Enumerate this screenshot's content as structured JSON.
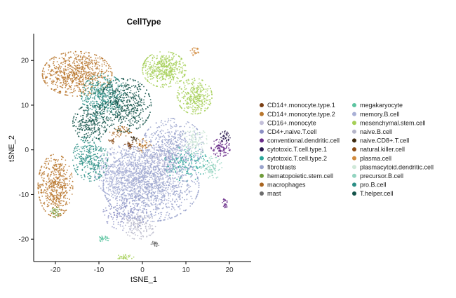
{
  "chart_data": {
    "type": "scatter",
    "title": "CellType",
    "xlabel": "tSNE_1",
    "ylabel": "tSNE_2",
    "xlim": [
      -25,
      25
    ],
    "ylim": [
      -25,
      26
    ],
    "x_ticks": [
      -20,
      -10,
      0,
      10,
      20
    ],
    "y_ticks": [
      -20,
      -10,
      0,
      10,
      20
    ],
    "grid": false,
    "legend_position": "right",
    "series": [
      {
        "name": "CD14+.monocyte.type.1",
        "color": "#7a3e12",
        "regions": [
          {
            "cx": -3,
            "cy": 1,
            "rx": 1.2,
            "ry": 1.0,
            "n": 30
          }
        ]
      },
      {
        "name": "CD14+.monocyte.type.2",
        "color": "#b8762c",
        "regions": [
          {
            "cx": -15,
            "cy": 17,
            "rx": 8,
            "ry": 5,
            "n": 750
          },
          {
            "cx": -20,
            "cy": -8,
            "rx": 4,
            "ry": 7,
            "n": 520
          },
          {
            "cx": 0,
            "cy": 1,
            "rx": 2,
            "ry": 1.5,
            "n": 50
          }
        ]
      },
      {
        "name": "CD16+.monocyte",
        "color": "#c3bfd9",
        "regions": [
          {
            "cx": 5,
            "cy": -2,
            "rx": 4,
            "ry": 3,
            "n": 120
          }
        ]
      },
      {
        "name": "CD4+.naive.T.cell",
        "color": "#8b8fc4",
        "regions": [
          {
            "cx": -4,
            "cy": -14,
            "rx": 5,
            "ry": 4,
            "n": 180
          }
        ]
      },
      {
        "name": "conventional.dendritic.cell",
        "color": "#6a2d8a",
        "regions": [
          {
            "cx": 18,
            "cy": 0.5,
            "rx": 2.2,
            "ry": 2,
            "n": 100
          },
          {
            "cx": 19,
            "cy": -12,
            "rx": 0.6,
            "ry": 1.2,
            "n": 25
          }
        ]
      },
      {
        "name": "cytotoxic.T.cell.type.1",
        "color": "#2a1a4f",
        "regions": [
          {
            "cx": 19,
            "cy": 3,
            "rx": 1.2,
            "ry": 1.2,
            "n": 40
          }
        ]
      },
      {
        "name": "cytotoxic.T.cell.type.2",
        "color": "#2aa79a",
        "regions": [
          {
            "cx": 10,
            "cy": -3,
            "rx": 5,
            "ry": 4,
            "n": 200
          }
        ]
      },
      {
        "name": "fibroblasts",
        "color": "#9aa3cc",
        "regions": [
          {
            "cx": 2,
            "cy": -8,
            "rx": 11,
            "ry": 8,
            "n": 1300
          },
          {
            "cx": 7,
            "cy": 1,
            "rx": 7,
            "ry": 6,
            "n": 500
          }
        ]
      },
      {
        "name": "hematopoietic.stem.cell",
        "color": "#6f9b3a",
        "regions": [
          {
            "cx": -20,
            "cy": -14,
            "rx": 1.2,
            "ry": 1.2,
            "n": 30
          }
        ]
      },
      {
        "name": "macrophages",
        "color": "#a8641f",
        "regions": [
          {
            "cx": -5,
            "cy": 4,
            "rx": 2.5,
            "ry": 1.2,
            "n": 50
          }
        ]
      },
      {
        "name": "mast",
        "color": "#6b6b6b",
        "regions": [
          {
            "cx": 3,
            "cy": -21,
            "rx": 1,
            "ry": 0.6,
            "n": 20
          }
        ]
      },
      {
        "name": "megakaryocyte",
        "color": "#5cc4a0",
        "regions": [
          {
            "cx": -9,
            "cy": -20,
            "rx": 1.3,
            "ry": 0.7,
            "n": 30
          }
        ]
      },
      {
        "name": "memory.B.cell",
        "color": "#a9b0d6",
        "regions": [
          {
            "cx": -4,
            "cy": -5,
            "rx": 7,
            "ry": 6,
            "n": 600
          }
        ]
      },
      {
        "name": "mesenchymal.stem.cell",
        "color": "#a5cf56",
        "regions": [
          {
            "cx": 5,
            "cy": 18,
            "rx": 5,
            "ry": 4,
            "n": 450
          },
          {
            "cx": 12,
            "cy": 12,
            "rx": 4,
            "ry": 4,
            "n": 320
          },
          {
            "cx": -4,
            "cy": -24,
            "rx": 2,
            "ry": 0.6,
            "n": 30
          }
        ]
      },
      {
        "name": "naive.B.cell",
        "color": "#b5b5c8",
        "regions": [
          {
            "cx": -1,
            "cy": -17,
            "rx": 4,
            "ry": 3,
            "n": 140
          }
        ]
      },
      {
        "name": "naive.CD8+.T.cell",
        "color": "#3d2a10",
        "regions": [
          {
            "cx": -2,
            "cy": 2.5,
            "rx": 0.8,
            "ry": 0.6,
            "n": 15
          }
        ]
      },
      {
        "name": "natural.killer.cell",
        "color": "#8a4a14",
        "regions": [
          {
            "cx": -7,
            "cy": 2,
            "rx": 0.8,
            "ry": 0.6,
            "n": 15
          }
        ]
      },
      {
        "name": "plasma.cell",
        "color": "#d18a3c",
        "regions": [
          {
            "cx": 12,
            "cy": 22,
            "rx": 1,
            "ry": 1,
            "n": 25
          }
        ]
      },
      {
        "name": "plasmacytoid.dendritic.cell",
        "color": "#cfe8d8",
        "regions": [
          {
            "cx": 12,
            "cy": 2,
            "rx": 3,
            "ry": 3,
            "n": 120
          }
        ]
      },
      {
        "name": "precursor.B.cell",
        "color": "#93d4c0",
        "regions": [
          {
            "cx": 16,
            "cy": -4,
            "rx": 2.5,
            "ry": 2.5,
            "n": 80
          }
        ]
      },
      {
        "name": "pro.B.cell",
        "color": "#2c8f86",
        "regions": [
          {
            "cx": -9,
            "cy": 12,
            "rx": 5,
            "ry": 5,
            "n": 420
          },
          {
            "cx": -12,
            "cy": -2,
            "rx": 4,
            "ry": 5,
            "n": 320
          }
        ]
      },
      {
        "name": "T.helper.cell",
        "color": "#14534a",
        "regions": [
          {
            "cx": -4,
            "cy": 10,
            "rx": 6,
            "ry": 6,
            "n": 520
          },
          {
            "cx": -12,
            "cy": 6,
            "rx": 4,
            "ry": 4,
            "n": 260
          }
        ]
      }
    ]
  }
}
